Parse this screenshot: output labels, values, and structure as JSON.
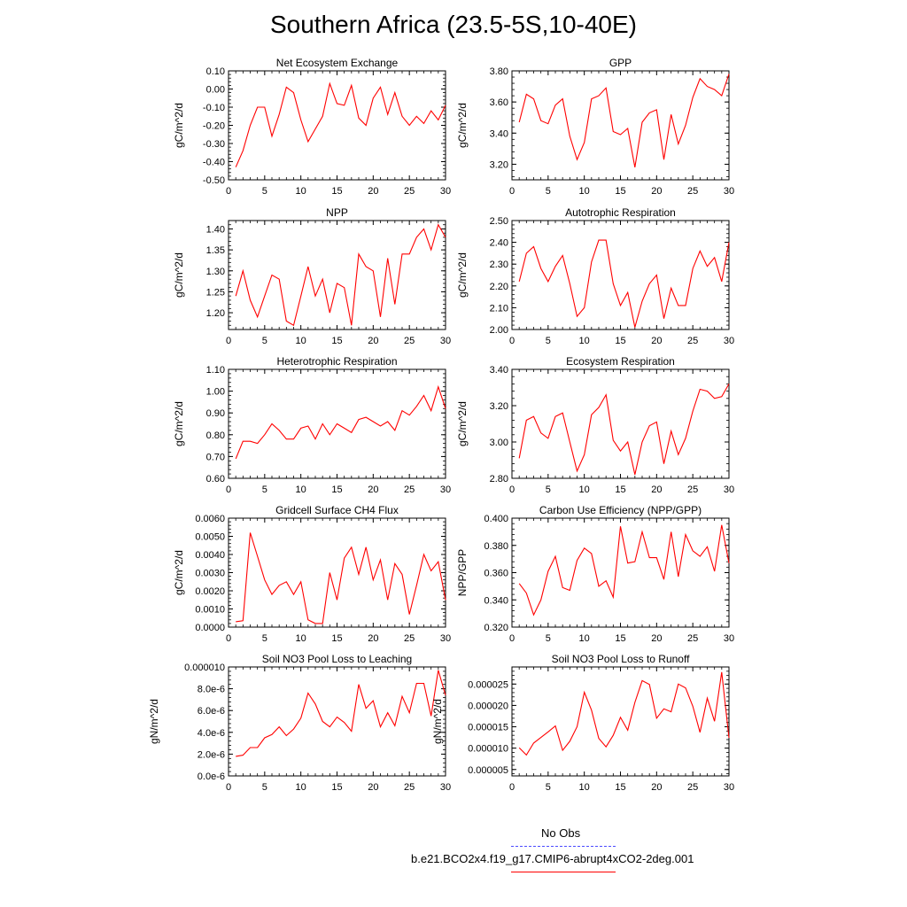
{
  "title": "Southern Africa (23.5-5S,10-40E)",
  "legend": {
    "items": [
      {
        "label": "No Obs",
        "color": "#4b4bff",
        "style": "dashed"
      },
      {
        "label": "b.e21.BCO2x4.f19_g17.CMIP6-abrupt4xCO2-2deg.001",
        "color": "#ff0000",
        "style": "solid"
      }
    ]
  },
  "chart_data": [
    {
      "type": "line",
      "title": "Net Ecosystem Exchange",
      "ylabel": "gC/m^2/d",
      "xlim": [
        0,
        30
      ],
      "ylim": [
        -0.5,
        0.1
      ],
      "xticks": [
        "0",
        "5",
        "10",
        "15",
        "20",
        "25",
        "30"
      ],
      "yticks": [
        "-0.50",
        "-0.40",
        "-0.30",
        "-0.20",
        "-0.10",
        "0.00",
        "0.10"
      ],
      "x": [
        1,
        2,
        3,
        4,
        5,
        6,
        7,
        8,
        9,
        10,
        11,
        12,
        13,
        14,
        15,
        16,
        17,
        18,
        19,
        20,
        21,
        22,
        23,
        24,
        25,
        26,
        27,
        28,
        29,
        30
      ],
      "series": [
        {
          "color": "#ff0000",
          "values": [
            -0.43,
            -0.34,
            -0.2,
            -0.1,
            -0.1,
            -0.26,
            -0.14,
            0.01,
            -0.02,
            -0.17,
            -0.29,
            -0.22,
            -0.15,
            0.03,
            -0.08,
            -0.09,
            0.02,
            -0.16,
            -0.2,
            -0.05,
            0.01,
            -0.14,
            -0.02,
            -0.15,
            -0.2,
            -0.15,
            -0.19,
            -0.12,
            -0.17,
            -0.09
          ]
        }
      ]
    },
    {
      "type": "line",
      "title": "GPP",
      "ylabel": "gC/m^2/d",
      "xlim": [
        0,
        30
      ],
      "ylim": [
        3.1,
        3.8
      ],
      "xticks": [
        "0",
        "5",
        "10",
        "15",
        "20",
        "25",
        "30"
      ],
      "yticks": [
        "3.20",
        "3.40",
        "3.60",
        "3.80"
      ],
      "x": [
        1,
        2,
        3,
        4,
        5,
        6,
        7,
        8,
        9,
        10,
        11,
        12,
        13,
        14,
        15,
        16,
        17,
        18,
        19,
        20,
        21,
        22,
        23,
        24,
        25,
        26,
        27,
        28,
        29,
        30
      ],
      "series": [
        {
          "color": "#ff0000",
          "values": [
            3.47,
            3.65,
            3.62,
            3.48,
            3.46,
            3.58,
            3.62,
            3.38,
            3.23,
            3.34,
            3.62,
            3.64,
            3.69,
            3.41,
            3.39,
            3.43,
            3.18,
            3.47,
            3.53,
            3.55,
            3.23,
            3.52,
            3.33,
            3.45,
            3.63,
            3.75,
            3.7,
            3.68,
            3.64,
            3.78
          ]
        }
      ]
    },
    {
      "type": "line",
      "title": "NPP",
      "ylabel": "gC/m^2/d",
      "xlim": [
        0,
        30
      ],
      "ylim": [
        1.16,
        1.42
      ],
      "xticks": [
        "0",
        "5",
        "10",
        "15",
        "20",
        "25",
        "30"
      ],
      "yticks": [
        "1.20",
        "1.25",
        "1.30",
        "1.35",
        "1.40"
      ],
      "x": [
        1,
        2,
        3,
        4,
        5,
        6,
        7,
        8,
        9,
        10,
        11,
        12,
        13,
        14,
        15,
        16,
        17,
        18,
        19,
        20,
        21,
        22,
        23,
        24,
        25,
        26,
        27,
        28,
        29,
        30
      ],
      "series": [
        {
          "color": "#ff0000",
          "values": [
            1.24,
            1.3,
            1.23,
            1.19,
            1.24,
            1.29,
            1.28,
            1.18,
            1.17,
            1.24,
            1.31,
            1.24,
            1.28,
            1.2,
            1.27,
            1.26,
            1.17,
            1.34,
            1.31,
            1.3,
            1.19,
            1.33,
            1.22,
            1.34,
            1.34,
            1.38,
            1.4,
            1.35,
            1.41,
            1.38
          ]
        }
      ]
    },
    {
      "type": "line",
      "title": "Autotrophic Respiration",
      "ylabel": "gC/m^2/d",
      "xlim": [
        0,
        30
      ],
      "ylim": [
        2.0,
        2.5
      ],
      "xticks": [
        "0",
        "5",
        "10",
        "15",
        "20",
        "25",
        "30"
      ],
      "yticks": [
        "2.00",
        "2.10",
        "2.20",
        "2.30",
        "2.40",
        "2.50"
      ],
      "x": [
        1,
        2,
        3,
        4,
        5,
        6,
        7,
        8,
        9,
        10,
        11,
        12,
        13,
        14,
        15,
        16,
        17,
        18,
        19,
        20,
        21,
        22,
        23,
        24,
        25,
        26,
        27,
        28,
        29,
        30
      ],
      "series": [
        {
          "color": "#ff0000",
          "values": [
            2.22,
            2.35,
            2.38,
            2.28,
            2.22,
            2.29,
            2.34,
            2.21,
            2.06,
            2.1,
            2.31,
            2.41,
            2.41,
            2.21,
            2.11,
            2.17,
            2.01,
            2.13,
            2.21,
            2.25,
            2.05,
            2.19,
            2.11,
            2.11,
            2.28,
            2.36,
            2.29,
            2.33,
            2.22,
            2.4
          ]
        }
      ]
    },
    {
      "type": "line",
      "title": "Heterotrophic Respiration",
      "ylabel": "gC/m^2/d",
      "xlim": [
        0,
        30
      ],
      "ylim": [
        0.6,
        1.1
      ],
      "xticks": [
        "0",
        "5",
        "10",
        "15",
        "20",
        "25",
        "30"
      ],
      "yticks": [
        "0.60",
        "0.70",
        "0.80",
        "0.90",
        "1.00",
        "1.10"
      ],
      "x": [
        1,
        2,
        3,
        4,
        5,
        6,
        7,
        8,
        9,
        10,
        11,
        12,
        13,
        14,
        15,
        16,
        17,
        18,
        19,
        20,
        21,
        22,
        23,
        24,
        25,
        26,
        27,
        28,
        29,
        30
      ],
      "series": [
        {
          "color": "#ff0000",
          "values": [
            0.69,
            0.77,
            0.77,
            0.76,
            0.8,
            0.85,
            0.82,
            0.78,
            0.78,
            0.83,
            0.84,
            0.78,
            0.85,
            0.8,
            0.85,
            0.83,
            0.81,
            0.87,
            0.88,
            0.86,
            0.84,
            0.86,
            0.82,
            0.91,
            0.89,
            0.93,
            0.98,
            0.91,
            1.02,
            0.92
          ]
        }
      ]
    },
    {
      "type": "line",
      "title": "Ecosystem Respiration",
      "ylabel": "gC/m^2/d",
      "xlim": [
        0,
        30
      ],
      "ylim": [
        2.8,
        3.4
      ],
      "xticks": [
        "0",
        "5",
        "10",
        "15",
        "20",
        "25",
        "30"
      ],
      "yticks": [
        "2.80",
        "3.00",
        "3.20",
        "3.40"
      ],
      "x": [
        1,
        2,
        3,
        4,
        5,
        6,
        7,
        8,
        9,
        10,
        11,
        12,
        13,
        14,
        15,
        16,
        17,
        18,
        19,
        20,
        21,
        22,
        23,
        24,
        25,
        26,
        27,
        28,
        29,
        30
      ],
      "series": [
        {
          "color": "#ff0000",
          "values": [
            2.91,
            3.12,
            3.14,
            3.05,
            3.02,
            3.14,
            3.16,
            3.0,
            2.84,
            2.93,
            3.15,
            3.19,
            3.26,
            3.01,
            2.95,
            3.0,
            2.82,
            3.0,
            3.09,
            3.11,
            2.88,
            3.06,
            2.93,
            3.02,
            3.17,
            3.29,
            3.28,
            3.24,
            3.25,
            3.32
          ]
        }
      ]
    },
    {
      "type": "line",
      "title": "Gridcell Surface CH4 Flux",
      "ylabel": "gC/m^2/d",
      "xlim": [
        0,
        30
      ],
      "ylim": [
        0,
        0.006
      ],
      "xticks": [
        "0",
        "5",
        "10",
        "15",
        "20",
        "25",
        "30"
      ],
      "yticks": [
        "0.0000",
        "0.0010",
        "0.0020",
        "0.0030",
        "0.0040",
        "0.0050",
        "0.0060"
      ],
      "x": [
        1,
        2,
        3,
        4,
        5,
        6,
        7,
        8,
        9,
        10,
        11,
        12,
        13,
        14,
        15,
        16,
        17,
        18,
        19,
        20,
        21,
        22,
        23,
        24,
        25,
        26,
        27,
        28,
        29,
        30
      ],
      "series": [
        {
          "color": "#ff0000",
          "values": [
            0.0003,
            0.00035,
            0.0052,
            0.0039,
            0.0026,
            0.0018,
            0.0023,
            0.0025,
            0.0018,
            0.0025,
            0.0004,
            0.0002,
            0.0002,
            0.003,
            0.0015,
            0.0038,
            0.0044,
            0.0029,
            0.0044,
            0.0026,
            0.0037,
            0.0015,
            0.0035,
            0.0029,
            0.0007,
            0.0023,
            0.004,
            0.0031,
            0.0036,
            0.0015
          ]
        }
      ]
    },
    {
      "type": "line",
      "title": "Carbon Use Efficiency (NPP/GPP)",
      "ylabel": "NPP/GPP",
      "xlim": [
        0,
        30
      ],
      "ylim": [
        0.32,
        0.4
      ],
      "xticks": [
        "0",
        "5",
        "10",
        "15",
        "20",
        "25",
        "30"
      ],
      "yticks": [
        "0.320",
        "0.340",
        "0.360",
        "0.380",
        "0.400"
      ],
      "x": [
        1,
        2,
        3,
        4,
        5,
        6,
        7,
        8,
        9,
        10,
        11,
        12,
        13,
        14,
        15,
        16,
        17,
        18,
        19,
        20,
        21,
        22,
        23,
        24,
        25,
        26,
        27,
        28,
        29,
        30
      ],
      "series": [
        {
          "color": "#ff0000",
          "values": [
            0.352,
            0.345,
            0.329,
            0.34,
            0.361,
            0.372,
            0.349,
            0.347,
            0.369,
            0.378,
            0.374,
            0.35,
            0.354,
            0.342,
            0.394,
            0.367,
            0.368,
            0.39,
            0.371,
            0.371,
            0.355,
            0.39,
            0.357,
            0.388,
            0.376,
            0.372,
            0.379,
            0.361,
            0.395,
            0.367
          ]
        }
      ]
    },
    {
      "type": "line",
      "title": "Soil NO3 Pool Loss to Leaching",
      "ylabel": "gN/m^2/d",
      "xlim": [
        0,
        30
      ],
      "ylim": [
        0,
        1e-05
      ],
      "xticks": [
        "0",
        "5",
        "10",
        "15",
        "20",
        "25",
        "30"
      ],
      "yticks": [
        "0.0e-6",
        "2.0e-6",
        "4.0e-6",
        "6.0e-6",
        "8.0e-6",
        "0.000010"
      ],
      "x": [
        1,
        2,
        3,
        4,
        5,
        6,
        7,
        8,
        9,
        10,
        11,
        12,
        13,
        14,
        15,
        16,
        17,
        18,
        19,
        20,
        21,
        22,
        23,
        24,
        25,
        26,
        27,
        28,
        29,
        30
      ],
      "series": [
        {
          "color": "#ff0000",
          "values": [
            1.8e-06,
            1.9e-06,
            2.6e-06,
            2.6e-06,
            3.5e-06,
            3.8e-06,
            4.5e-06,
            3.7e-06,
            4.3e-06,
            5.3e-06,
            7.6e-06,
            6.6e-06,
            5e-06,
            4.5e-06,
            5.4e-06,
            4.9e-06,
            4.1e-06,
            8.4e-06,
            6.2e-06,
            6.9e-06,
            4.5e-06,
            5.8e-06,
            4.6e-06,
            7.3e-06,
            5.8e-06,
            8.5e-06,
            8.5e-06,
            5.5e-06,
            9.7e-06,
            7.4e-06
          ]
        }
      ]
    },
    {
      "type": "line",
      "title": "Soil NO3 Pool Loss to Runoff",
      "ylabel": "gN/m^2/d",
      "xlim": [
        0,
        30
      ],
      "ylim": [
        3.5e-06,
        2.9e-05
      ],
      "xticks": [
        "0",
        "5",
        "10",
        "15",
        "20",
        "25",
        "30"
      ],
      "yticks": [
        "0.000005",
        "0.000010",
        "0.000015",
        "0.000020",
        "0.000025"
      ],
      "x": [
        1,
        2,
        3,
        4,
        5,
        6,
        7,
        8,
        9,
        10,
        11,
        12,
        13,
        14,
        15,
        16,
        17,
        18,
        19,
        20,
        21,
        22,
        23,
        24,
        25,
        26,
        27,
        28,
        29,
        30
      ],
      "series": [
        {
          "color": "#ff0000",
          "values": [
            1.01e-05,
            8.4e-06,
            1.12e-05,
            1.25e-05,
            1.38e-05,
            1.52e-05,
            9.5e-06,
            1.16e-05,
            1.5e-05,
            2.31e-05,
            1.89e-05,
            1.23e-05,
            1.03e-05,
            1.3e-05,
            1.72e-05,
            1.42e-05,
            2.07e-05,
            2.58e-05,
            2.49e-05,
            1.7e-05,
            1.92e-05,
            1.85e-05,
            2.5e-05,
            2.41e-05,
            1.98e-05,
            1.37e-05,
            2.17e-05,
            1.63e-05,
            2.78e-05,
            1.24e-05
          ]
        }
      ]
    }
  ]
}
